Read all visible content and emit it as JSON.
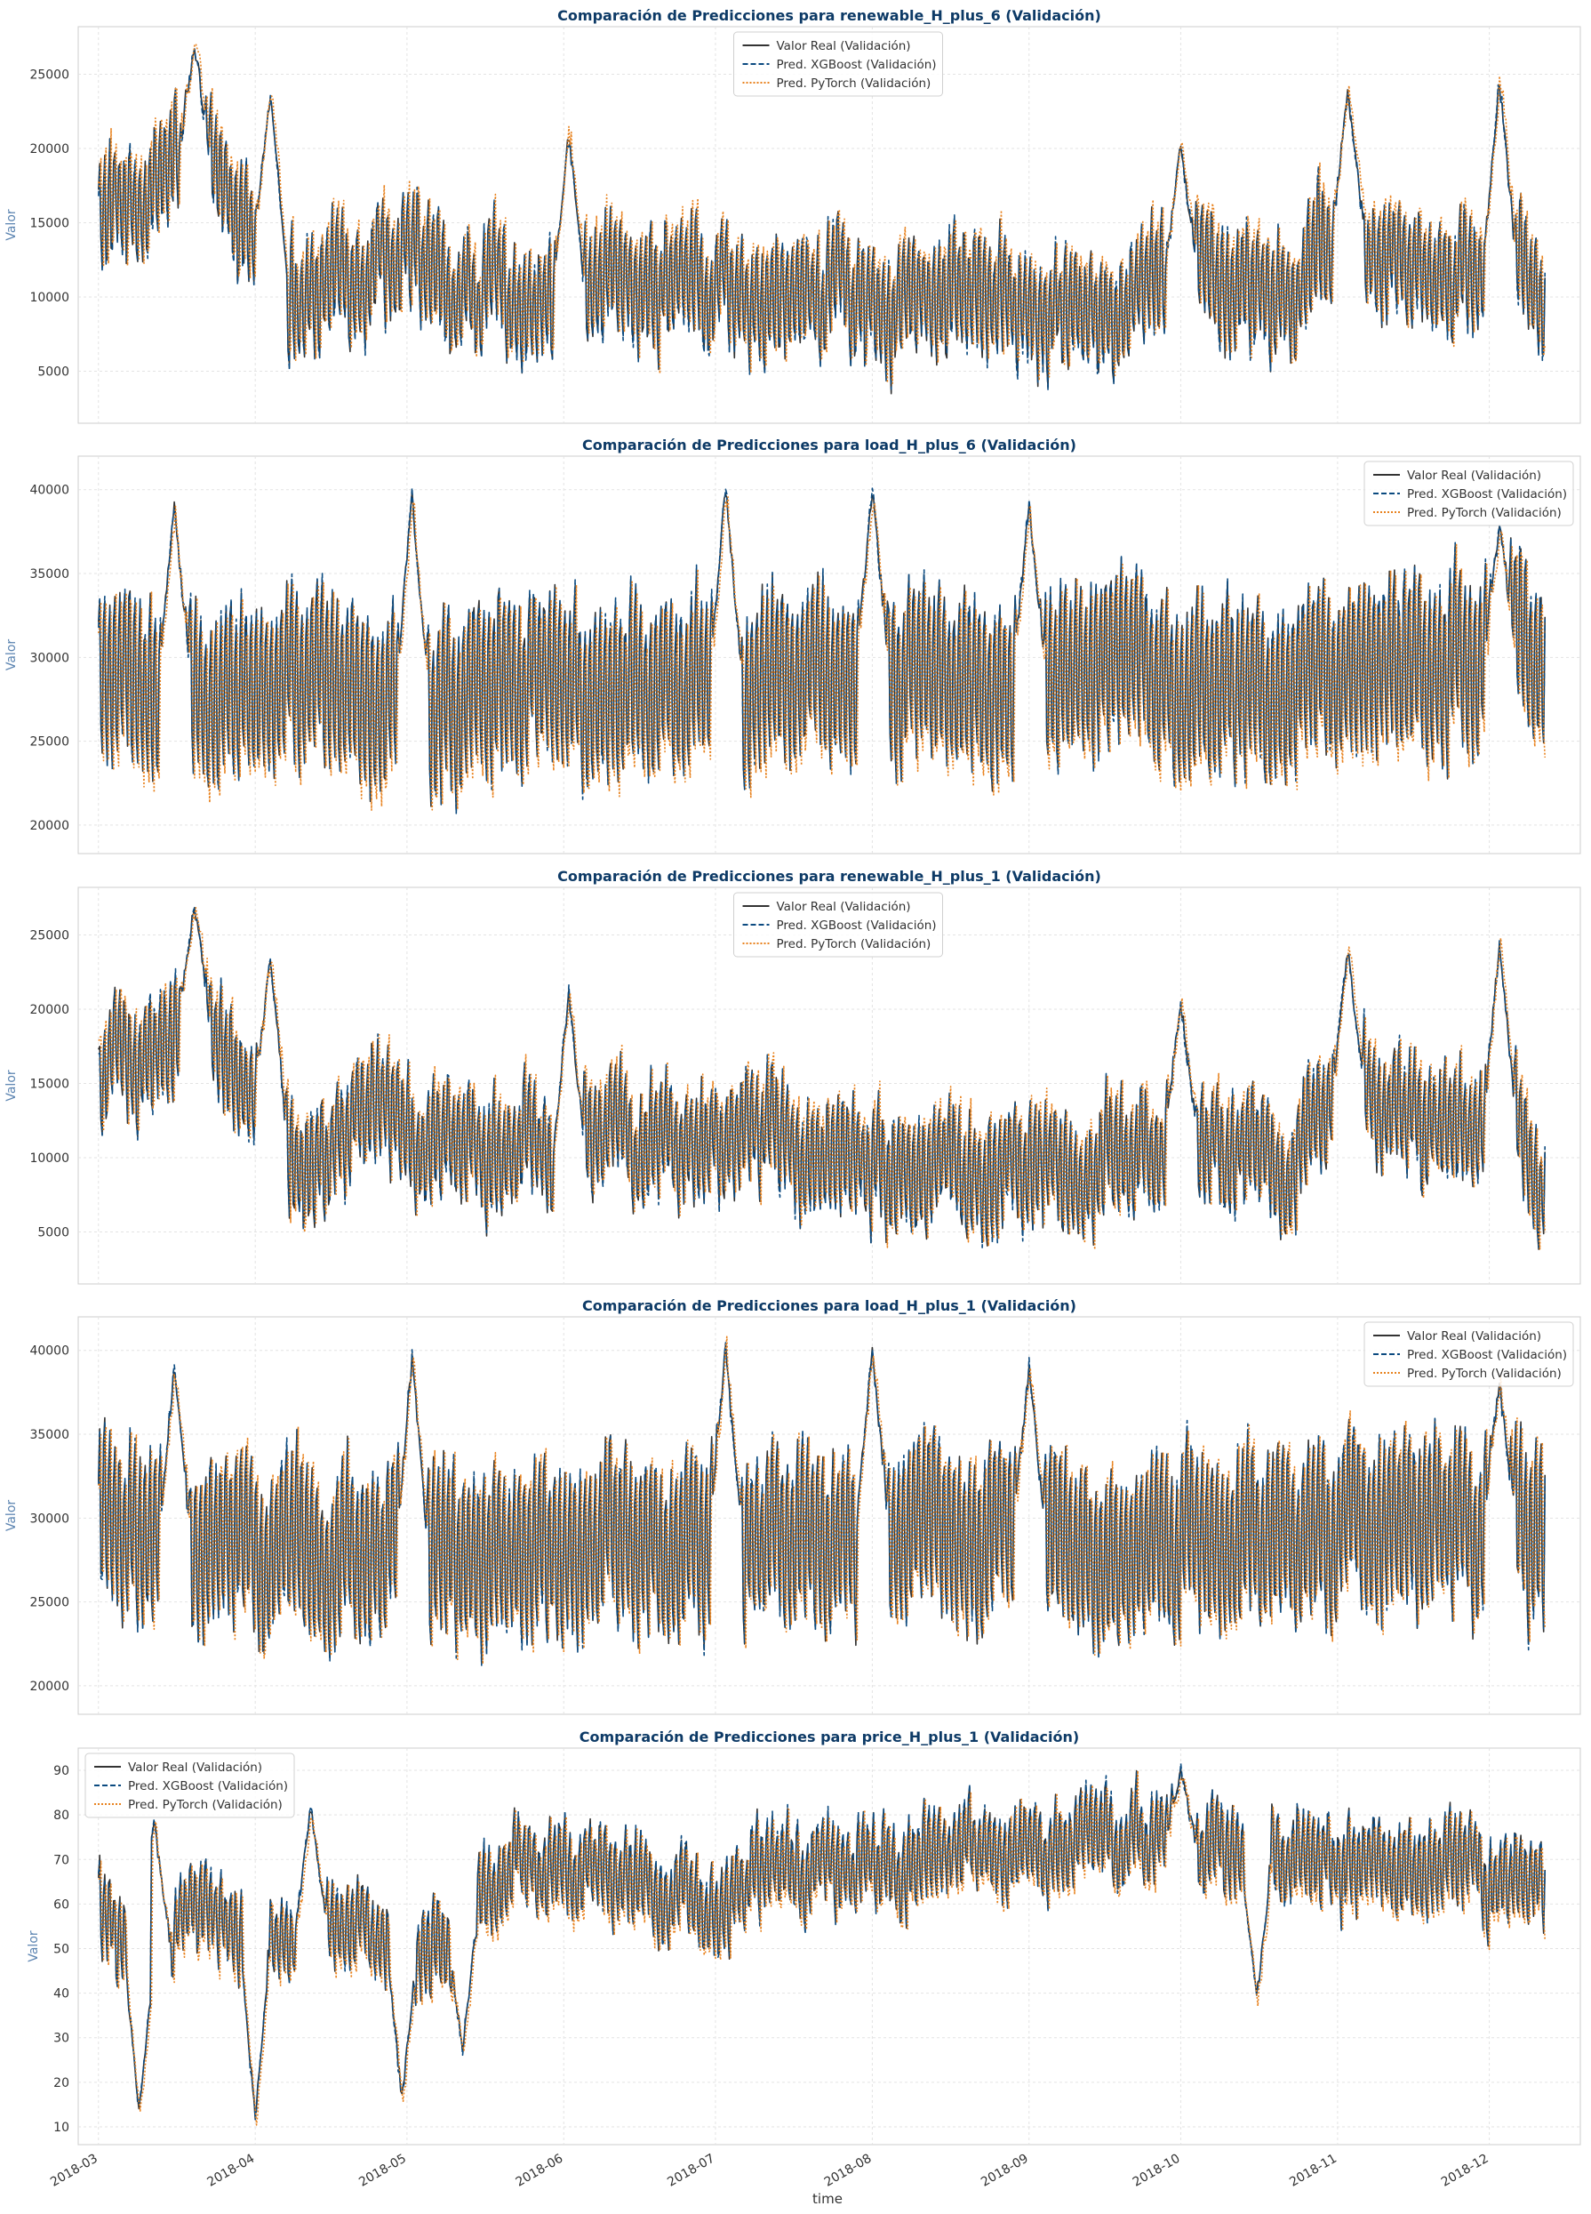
{
  "figure": {
    "shared_xlabel": "time",
    "x_ticks": [
      "2018-03",
      "2018-04",
      "2018-05",
      "2018-06",
      "2018-07",
      "2018-08",
      "2018-09",
      "2018-10",
      "2018-11",
      "2018-12"
    ]
  },
  "legend_labels": [
    "Valor Real (Validación)",
    "Pred. XGBoost (Validación)",
    "Pred. PyTorch (Validación)"
  ],
  "colors": {
    "real": "#333333",
    "xgboost": "#0b4a80",
    "pytorch": "#e8821e",
    "title": "#0d3a66",
    "ylabel": "#5b84b1"
  },
  "chart_data": [
    {
      "type": "line",
      "title": "Comparación de Predicciones para renewable_H_plus_6 (Validación)",
      "ylabel": "Valor",
      "xlabel": "",
      "ylim": [
        1500,
        28200
      ],
      "yticks": [
        5000,
        10000,
        15000,
        20000,
        25000
      ],
      "x_range": [
        "2018-02-25",
        "2018-12-19"
      ],
      "x_data_range": [
        "2018-03-01",
        "2018-12-12"
      ],
      "legend_position": "upper center",
      "grid": true,
      "series": [
        {
          "name": "Valor Real (Validación)",
          "color": "#333333",
          "style": "solid"
        },
        {
          "name": "Pred. XGBoost (Validación)",
          "color": "#0b4a80",
          "style": "dashed"
        },
        {
          "name": "Pred. PyTorch (Validación)",
          "color": "#e8821e",
          "style": "dotted"
        }
      ],
      "value_profile": {
        "anchors": [
          [
            "2018-03-01",
            15000
          ],
          [
            "2018-03-20",
            20000
          ],
          [
            "2018-04-01",
            15000
          ],
          [
            "2018-04-10",
            9500
          ],
          [
            "2018-04-25",
            13500
          ],
          [
            "2018-05-10",
            10500
          ],
          [
            "2018-06-01",
            10000
          ],
          [
            "2018-06-15",
            12000
          ],
          [
            "2018-07-15",
            10500
          ],
          [
            "2018-08-15",
            10000
          ],
          [
            "2018-09-10",
            8500
          ],
          [
            "2018-10-01",
            12000
          ],
          [
            "2018-10-20",
            9500
          ],
          [
            "2018-11-05",
            15000
          ],
          [
            "2018-11-20",
            10500
          ],
          [
            "2018-12-05",
            13000
          ],
          [
            "2018-12-12",
            9000
          ]
        ],
        "peaks": [
          [
            "2018-03-20",
            27500
          ],
          [
            "2018-04-04",
            24000
          ],
          [
            "2018-06-02",
            21500
          ],
          [
            "2018-10-01",
            21000
          ],
          [
            "2018-11-03",
            24500
          ],
          [
            "2018-12-03",
            25000
          ]
        ],
        "daily_amplitude": 4000,
        "noise": 2000,
        "min": 2800,
        "max": 27500
      },
      "pred_bias": {
        "xgboost": 0,
        "pytorch": 300
      }
    },
    {
      "type": "line",
      "title": "Comparación de Predicciones para load_H_plus_6 (Validación)",
      "ylabel": "Valor",
      "xlabel": "",
      "ylim": [
        18300,
        42000
      ],
      "yticks": [
        20000,
        25000,
        30000,
        35000,
        40000
      ],
      "x_range": [
        "2018-02-25",
        "2018-12-19"
      ],
      "x_data_range": [
        "2018-03-01",
        "2018-12-12"
      ],
      "legend_position": "upper right",
      "grid": true,
      "series": [
        {
          "name": "Valor Real (Validación)",
          "color": "#333333",
          "style": "solid"
        },
        {
          "name": "Pred. XGBoost (Validación)",
          "color": "#0b4a80",
          "style": "dashed"
        },
        {
          "name": "Pred. PyTorch (Validación)",
          "color": "#e8821e",
          "style": "dotted"
        }
      ],
      "value_profile": {
        "anchors": [
          [
            "2018-03-01",
            29000
          ],
          [
            "2018-05-01",
            28000
          ],
          [
            "2018-08-01",
            29500
          ],
          [
            "2018-10-01",
            28500
          ],
          [
            "2018-12-12",
            30000
          ]
        ],
        "peaks": [
          [
            "2018-03-16",
            39500
          ],
          [
            "2018-05-02",
            40000
          ],
          [
            "2018-07-03",
            40500
          ],
          [
            "2018-08-01",
            40500
          ],
          [
            "2018-09-01",
            39500
          ],
          [
            "2018-12-03",
            38500
          ]
        ],
        "daily_amplitude": 5500,
        "noise": 1800,
        "min": 19300,
        "max": 40600
      },
      "pred_bias": {
        "xgboost": 0,
        "pytorch": -400
      }
    },
    {
      "type": "line",
      "title": "Comparación de Predicciones para renewable_H_plus_1 (Validación)",
      "ylabel": "Valor",
      "xlabel": "",
      "ylim": [
        1500,
        28200
      ],
      "yticks": [
        5000,
        10000,
        15000,
        20000,
        25000
      ],
      "x_range": [
        "2018-02-25",
        "2018-12-19"
      ],
      "x_data_range": [
        "2018-03-01",
        "2018-12-12"
      ],
      "legend_position": "upper center",
      "grid": true,
      "series": [
        {
          "name": "Valor Real (Validación)",
          "color": "#333333",
          "style": "solid"
        },
        {
          "name": "Pred. XGBoost (Validación)",
          "color": "#0b4a80",
          "style": "dashed"
        },
        {
          "name": "Pred. PyTorch (Validación)",
          "color": "#e8821e",
          "style": "dotted"
        }
      ],
      "value_profile": {
        "anchors": [
          [
            "2018-03-01",
            15000
          ],
          [
            "2018-03-20",
            20000
          ],
          [
            "2018-04-01",
            15000
          ],
          [
            "2018-04-10",
            9500
          ],
          [
            "2018-04-25",
            13500
          ],
          [
            "2018-05-10",
            10500
          ],
          [
            "2018-06-01",
            10000
          ],
          [
            "2018-06-15",
            12000
          ],
          [
            "2018-07-15",
            10500
          ],
          [
            "2018-08-15",
            10000
          ],
          [
            "2018-09-10",
            8500
          ],
          [
            "2018-10-01",
            12000
          ],
          [
            "2018-10-20",
            9500
          ],
          [
            "2018-11-05",
            15000
          ],
          [
            "2018-11-20",
            10500
          ],
          [
            "2018-12-05",
            13000
          ],
          [
            "2018-12-12",
            9000
          ]
        ],
        "peaks": [
          [
            "2018-03-20",
            27500
          ],
          [
            "2018-04-04",
            24000
          ],
          [
            "2018-06-02",
            21500
          ],
          [
            "2018-10-01",
            21000
          ],
          [
            "2018-11-03",
            24500
          ],
          [
            "2018-12-03",
            25000
          ]
        ],
        "daily_amplitude": 4000,
        "noise": 2000,
        "min": 2800,
        "max": 27500
      },
      "pred_bias": {
        "xgboost": 0,
        "pytorch": 200
      }
    },
    {
      "type": "line",
      "title": "Comparación de Predicciones para load_H_plus_1 (Validación)",
      "ylabel": "Valor",
      "xlabel": "",
      "ylim": [
        18300,
        42000
      ],
      "yticks": [
        20000,
        25000,
        30000,
        35000,
        40000
      ],
      "x_range": [
        "2018-02-25",
        "2018-12-19"
      ],
      "x_data_range": [
        "2018-03-01",
        "2018-12-12"
      ],
      "legend_position": "upper right",
      "grid": true,
      "series": [
        {
          "name": "Valor Real (Validación)",
          "color": "#333333",
          "style": "solid"
        },
        {
          "name": "Pred. XGBoost (Validación)",
          "color": "#0b4a80",
          "style": "dashed"
        },
        {
          "name": "Pred. PyTorch (Validación)",
          "color": "#e8821e",
          "style": "dotted"
        }
      ],
      "value_profile": {
        "anchors": [
          [
            "2018-03-01",
            29000
          ],
          [
            "2018-05-01",
            28000
          ],
          [
            "2018-08-01",
            29500
          ],
          [
            "2018-10-01",
            28500
          ],
          [
            "2018-12-12",
            30000
          ]
        ],
        "peaks": [
          [
            "2018-03-16",
            39500
          ],
          [
            "2018-05-02",
            40000
          ],
          [
            "2018-07-03",
            40500
          ],
          [
            "2018-08-01",
            40500
          ],
          [
            "2018-09-01",
            39500
          ],
          [
            "2018-12-03",
            38500
          ]
        ],
        "daily_amplitude": 5500,
        "noise": 1800,
        "min": 19300,
        "max": 40600
      },
      "pred_bias": {
        "xgboost": 0,
        "pytorch": 0
      }
    },
    {
      "type": "line",
      "title": "Comparación de Predicciones para price_H_plus_1 (Validación)",
      "ylabel": "Valor",
      "xlabel": "time",
      "ylim": [
        6,
        95
      ],
      "yticks": [
        10,
        20,
        30,
        40,
        50,
        60,
        70,
        80,
        90
      ],
      "x_range": [
        "2018-02-25",
        "2018-12-19"
      ],
      "x_data_range": [
        "2018-03-01",
        "2018-12-12"
      ],
      "legend_position": "upper left",
      "grid": true,
      "series": [
        {
          "name": "Valor Real (Validación)",
          "color": "#333333",
          "style": "solid"
        },
        {
          "name": "Pred. XGBoost (Validación)",
          "color": "#0b4a80",
          "style": "dashed"
        },
        {
          "name": "Pred. PyTorch (Validación)",
          "color": "#e8821e",
          "style": "dotted"
        }
      ],
      "value_profile": {
        "anchors": [
          [
            "2018-03-01",
            60
          ],
          [
            "2018-03-10",
            45
          ],
          [
            "2018-03-20",
            60
          ],
          [
            "2018-04-01",
            50
          ],
          [
            "2018-04-15",
            55
          ],
          [
            "2018-05-01",
            50
          ],
          [
            "2018-05-10",
            52
          ],
          [
            "2018-05-20",
            68
          ],
          [
            "2018-06-01",
            70
          ],
          [
            "2018-06-15",
            64
          ],
          [
            "2018-07-01",
            62
          ],
          [
            "2018-07-15",
            66
          ],
          [
            "2018-08-01",
            68
          ],
          [
            "2018-09-01",
            74
          ],
          [
            "2018-09-20",
            76
          ],
          [
            "2018-10-01",
            74
          ],
          [
            "2018-10-15",
            68
          ],
          [
            "2018-11-01",
            70
          ],
          [
            "2018-12-12",
            66
          ]
        ],
        "peaks": [
          [
            "2018-03-12",
            80
          ],
          [
            "2018-04-12",
            83
          ],
          [
            "2018-10-01",
            91
          ]
        ],
        "dips": [
          [
            "2018-03-09",
            12
          ],
          [
            "2018-04-01",
            11
          ],
          [
            "2018-04-30",
            15
          ],
          [
            "2018-05-12",
            26
          ],
          [
            "2018-10-16",
            38
          ]
        ],
        "daily_amplitude": 10,
        "noise": 5,
        "min": 11,
        "max": 92
      },
      "pred_bias": {
        "xgboost": 0,
        "pytorch": -1
      }
    }
  ]
}
